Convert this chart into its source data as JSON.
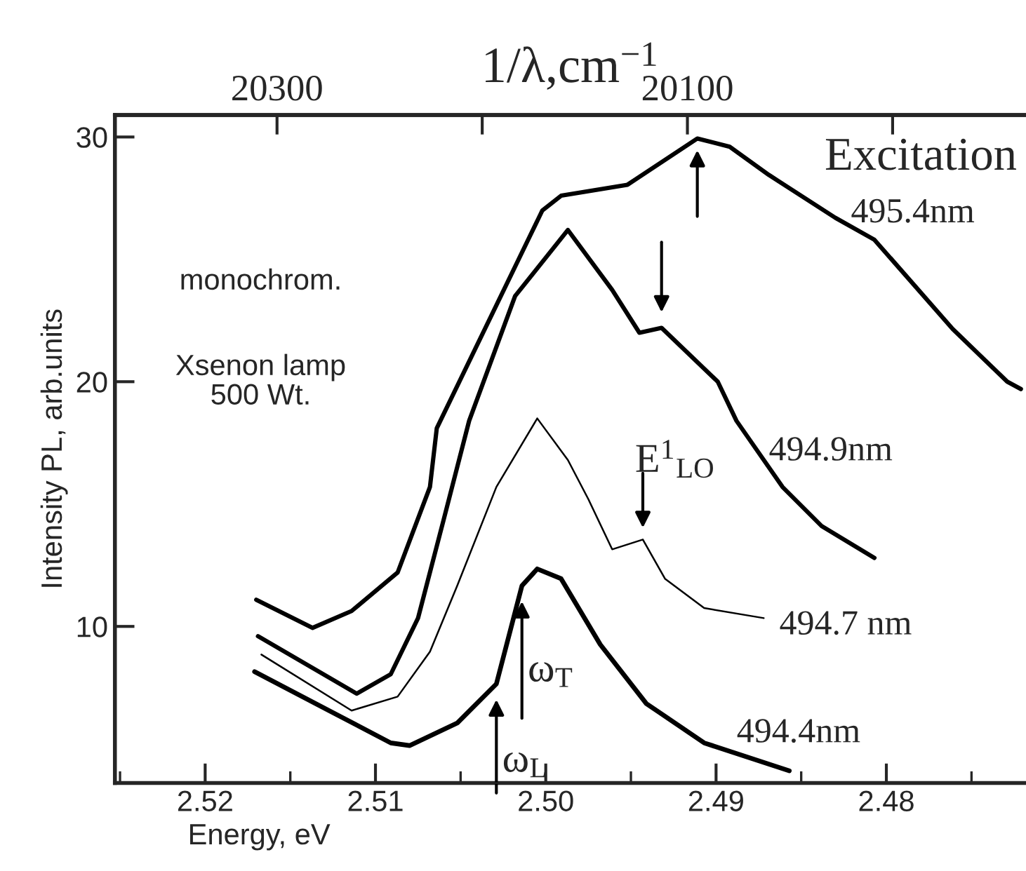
{
  "chart_data": {
    "type": "line",
    "xlabel": "Energy, eV",
    "ylabel": "Intensity PL, arb.units",
    "x2label": "1/λ,cm$^{−1}$",
    "xlim": [
      2.5253,
      2.4718
    ],
    "xticks": [
      2.52,
      2.51,
      {
        "value": 2.5,
        "label": "2.50"
      },
      2.49,
      2.48
    ],
    "x2lim": [
      20379,
      19935
    ],
    "x2ticks": [
      20300,
      {
        "value": 20200,
        "label": null
      },
      20100,
      {
        "value": 20000,
        "label": null
      }
    ],
    "ylim": [
      3.6,
      30.9
    ],
    "yticks": [
      10,
      20,
      30
    ],
    "grid": false,
    "marker": "none",
    "line_style": "solid",
    "series": [
      {
        "name": "495.4nm",
        "color": "#000000",
        "x": [
          2.517,
          2.5137,
          2.5114,
          2.5087,
          2.5068,
          2.5064,
          2.5002,
          2.4991,
          2.4952,
          2.4911,
          2.4892,
          2.4869,
          2.483,
          2.4807,
          2.4761,
          2.4729,
          2.4721
        ],
        "values": [
          11.09,
          9.94,
          10.63,
          12.2,
          15.7,
          18.1,
          27.0,
          27.6,
          28.05,
          29.94,
          29.6,
          28.45,
          26.7,
          25.8,
          22.15,
          20.0,
          19.7
        ]
      },
      {
        "name": "494.9nm",
        "color": "#000000",
        "x": [
          2.5169,
          2.5111,
          2.5091,
          2.5075,
          2.506,
          2.5045,
          2.5018,
          2.4987,
          2.4961,
          2.4945,
          2.4932,
          2.4899,
          2.4888,
          2.4861,
          2.4838,
          2.4807
        ],
        "values": [
          9.6,
          7.25,
          8.05,
          10.34,
          14.35,
          18.4,
          23.5,
          26.2,
          23.75,
          22.0,
          22.2,
          20.0,
          18.4,
          15.7,
          14.1,
          12.8
        ]
      },
      {
        "name": "494.7 nm",
        "color": "#000000",
        "x": [
          2.5167,
          2.5114,
          2.5087,
          2.5068,
          2.5052,
          2.5029,
          2.5005,
          2.4987,
          2.4975,
          2.4961,
          2.4943,
          2.493,
          2.4907,
          2.4872
        ],
        "values": [
          8.85,
          6.56,
          7.13,
          8.97,
          11.66,
          15.7,
          18.5,
          16.8,
          15.2,
          13.15,
          13.55,
          11.95,
          10.75,
          10.34
        ]
      },
      {
        "name": "494.4nm",
        "color": "#000000",
        "x": [
          2.5171,
          2.5091,
          2.508,
          2.5052,
          2.5029,
          2.5014,
          2.5005,
          2.4991,
          2.4968,
          2.4941,
          2.4907,
          2.4857
        ],
        "values": [
          8.15,
          5.24,
          5.13,
          6.05,
          7.65,
          11.66,
          12.35,
          11.95,
          9.26,
          6.85,
          5.24,
          4.1
        ]
      }
    ],
    "annotations": [
      "Excitation",
      "monochrom.",
      "Xsenon lamp\n500 Wt.",
      "E$^{1}$$_{LO}$",
      "ω$_{T}$",
      "ω$_{L}$"
    ]
  }
}
